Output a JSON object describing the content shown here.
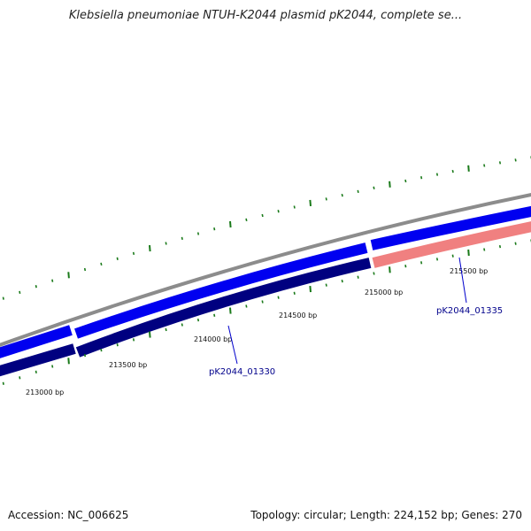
{
  "title": "Klebsiella pneumoniae NTUH-K2044 plasmid pK2044, complete se...",
  "footer": {
    "accession": "Accession: NC_006625",
    "summary": "Topology: circular; Length: 224,152 bp; Genes: 270"
  },
  "colors": {
    "backbone": "#8c8c8c",
    "cds": "#0000f0",
    "gene": "#000080",
    "gene_alt": "#f08080",
    "tick": "#1a7a1a",
    "callout": "#0000cc"
  },
  "ticks": [
    {
      "bp": 213000,
      "label": "213000 bp"
    },
    {
      "bp": 213500,
      "label": "213500 bp"
    },
    {
      "bp": 214000,
      "label": "214000 bp"
    },
    {
      "bp": 214500,
      "label": "214500 bp"
    },
    {
      "bp": 215000,
      "label": "215000 bp"
    },
    {
      "bp": 215500,
      "label": "215500 bp"
    }
  ],
  "genes": [
    {
      "locus": "pK2044_01330"
    },
    {
      "locus": "pK2044_01335"
    }
  ]
}
